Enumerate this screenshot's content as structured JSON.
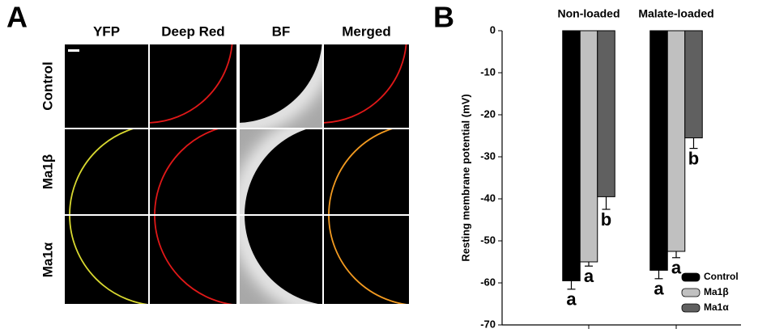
{
  "panel_a": {
    "label": "A",
    "columns": [
      "YFP",
      "Deep Red",
      "BF",
      "Merged"
    ],
    "rows": [
      "Control",
      "Ma1β",
      "Ma1α"
    ]
  },
  "chart_data": {
    "type": "bar",
    "label": "B",
    "categories": [
      "Non-loaded",
      "Malate-loaded"
    ],
    "y_label": "Resting membrane potential (mV)",
    "series": [
      {
        "name": "Control",
        "color": "#000000",
        "values": [
          -59.5,
          -57
        ],
        "errors": [
          2,
          2
        ],
        "letters": [
          "a",
          "a"
        ]
      },
      {
        "name": "Ma1β",
        "color": "#c0c0c0",
        "values": [
          -55,
          -52.5
        ],
        "errors": [
          1,
          1.5
        ],
        "letters": [
          "a",
          "a"
        ]
      },
      {
        "name": "Ma1α",
        "color": "#606060",
        "values": [
          -39.5,
          -25.5
        ],
        "errors": [
          3,
          2.5
        ],
        "letters": [
          "b",
          "b"
        ]
      }
    ],
    "ylim": [
      0,
      -70
    ],
    "yticks": [
      0,
      -10,
      -20,
      -30,
      -40,
      -50,
      -60,
      -70
    ],
    "legend": "lower right"
  }
}
